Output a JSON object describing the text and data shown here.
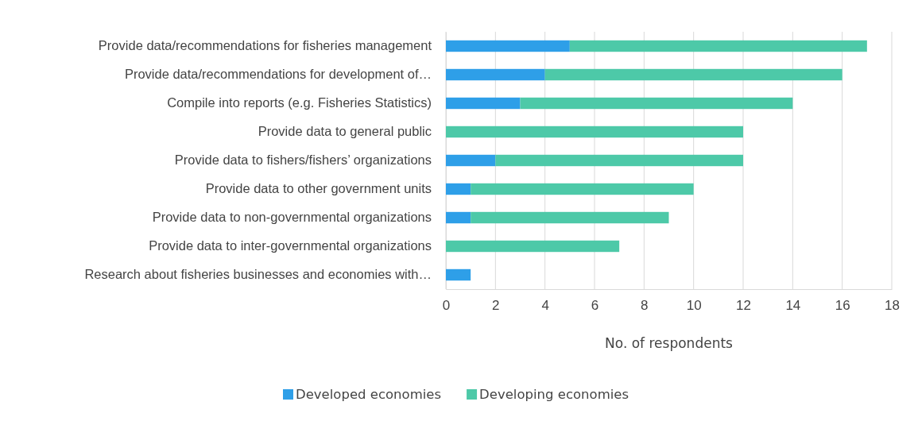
{
  "chart_data": {
    "type": "bar",
    "orientation": "horizontal",
    "stacked": true,
    "xlabel": "No. of respondents",
    "categories": [
      "Provide data/recommendations for fisheries management",
      "Provide data/recommendations for development of…",
      "Compile into reports (e.g. Fisheries Statistics)",
      "Provide data to general public",
      "Provide data to fishers/fishers’ organizations",
      "Provide data to other government units",
      "Provide data to non-governmental organizations",
      "Provide data to inter-governmental organizations",
      "Research about fisheries businesses and economies with…"
    ],
    "series": [
      {
        "name": "Developed economies",
        "color": "#2e9fe8",
        "values": [
          5,
          4,
          3,
          0,
          2,
          1,
          1,
          0,
          1
        ]
      },
      {
        "name": "Developing economies",
        "color": "#4dc9a8",
        "values": [
          12,
          12,
          11,
          12,
          10,
          9,
          8,
          7,
          0
        ]
      }
    ],
    "xlim": [
      0,
      18
    ],
    "xticks": [
      0,
      2,
      4,
      6,
      8,
      10,
      12,
      14,
      16,
      18
    ],
    "grid": "x",
    "legend": "bottom"
  }
}
